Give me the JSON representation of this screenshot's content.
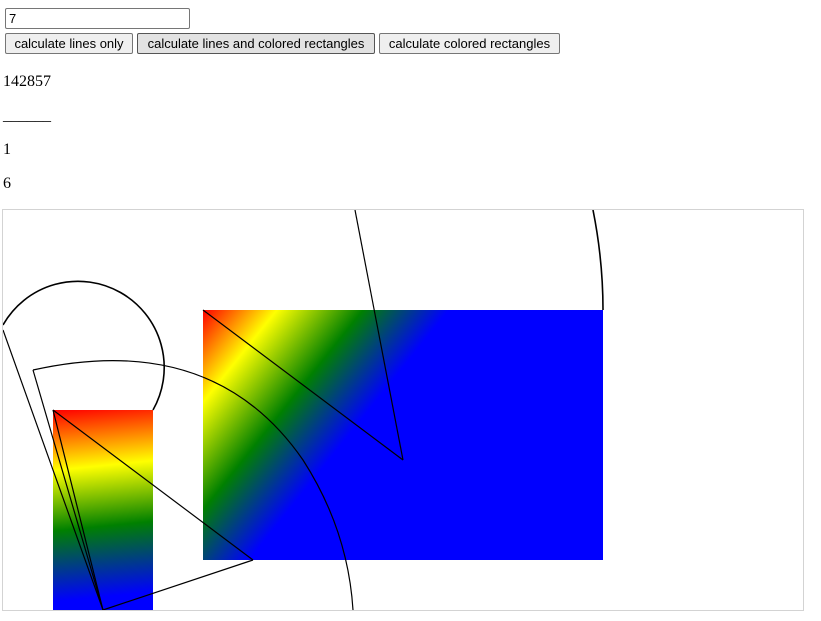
{
  "input": {
    "value": "7"
  },
  "buttons": {
    "lines_only": "calculate lines only",
    "lines_and_rects": "calculate lines and colored rectangles",
    "rects_only": "calculate colored rectangles"
  },
  "result": {
    "digits": "142857",
    "separator": "______",
    "line3": "1",
    "line4": "6"
  },
  "colors": {
    "gradient": [
      "#ff0000",
      "#ffff00",
      "#008000",
      "#0000ff"
    ],
    "stroke": "#000000",
    "canvas_border": "#d3d3d3"
  }
}
